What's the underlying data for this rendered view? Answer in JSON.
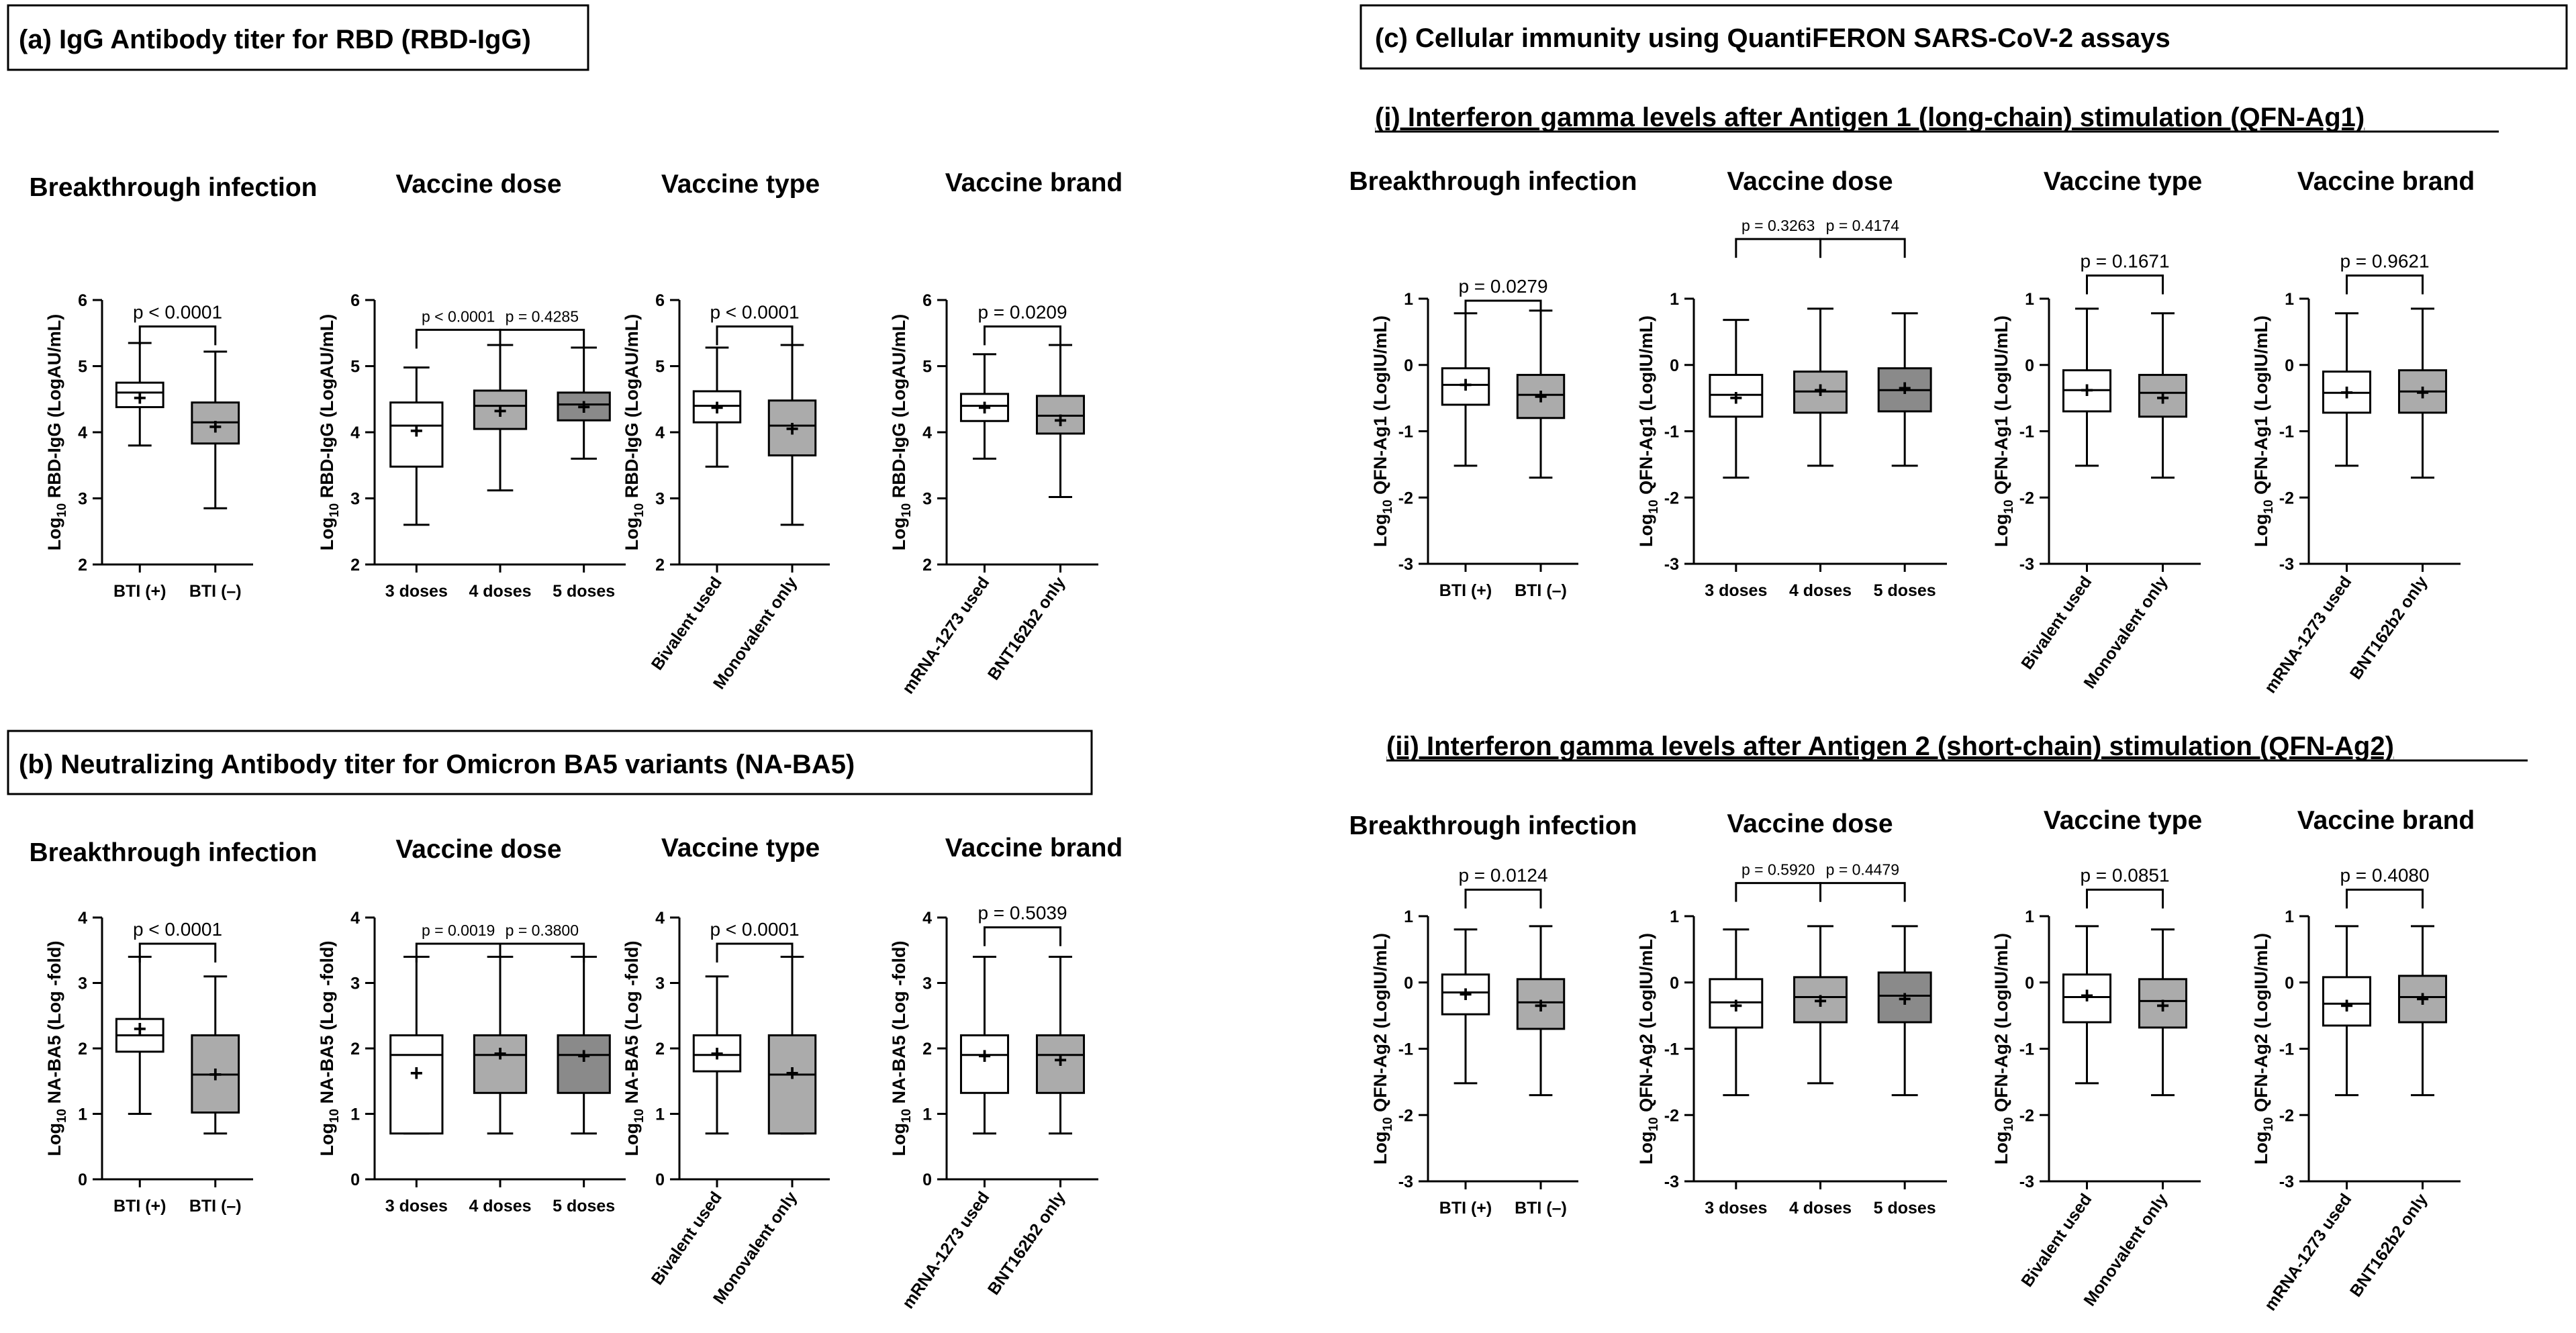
{
  "panels": {
    "a": "(a) IgG Antibody titer for RBD (RBD-IgG)",
    "b": "(b) Neutralizing Antibody titer for Omicron BA5 variants (NA-BA5)",
    "c": "(c) Cellular immunity using QuantiFERON SARS-CoV-2 assays",
    "c_i": "(i) Interferon gamma levels after Antigen 1 (long-chain) stimulation (QFN-Ag1)",
    "c_ii": "(ii) Interferon gamma levels after Antigen 2 (short-chain) stimulation (QFN-Ag2)"
  },
  "colors": {
    "white": "#ffffff",
    "light_gray": "#ababab",
    "dark_gray": "#8a8a8a",
    "black": "#000000"
  },
  "chart_data": [
    {
      "id": "a-bti",
      "type": "boxplot",
      "title": "Breakthrough infection",
      "ylabel_main": "Log",
      "ylabel_sub": "10",
      "ylabel_rest": " RBD-IgG  (LogAU/mL)",
      "ylim": [
        2,
        6
      ],
      "yticks": [
        2,
        3,
        4,
        5,
        6
      ],
      "categories": [
        "BTI (+)",
        "BTI (–)"
      ],
      "rotated": false,
      "boxes": [
        {
          "min": 3.8,
          "q1": 4.38,
          "median": 4.6,
          "q3": 4.75,
          "max": 5.35,
          "mean": 4.52,
          "fill": "white"
        },
        {
          "min": 2.85,
          "q1": 3.83,
          "median": 4.15,
          "q3": 4.45,
          "max": 5.22,
          "mean": 4.08,
          "fill": "light_gray"
        }
      ],
      "comparisons": [
        {
          "label": "p < 0.0001",
          "from": 0,
          "to": 1,
          "y": 5.6
        }
      ]
    },
    {
      "id": "a-dose",
      "type": "boxplot",
      "title": "Vaccine dose",
      "ylabel_main": "Log",
      "ylabel_sub": "10",
      "ylabel_rest": " RBD-IgG  (LogAU/mL)",
      "ylim": [
        2,
        6
      ],
      "yticks": [
        2,
        3,
        4,
        5,
        6
      ],
      "categories": [
        "3 doses",
        "4 doses",
        "5 doses"
      ],
      "rotated": false,
      "boxes": [
        {
          "min": 2.6,
          "q1": 3.48,
          "median": 4.1,
          "q3": 4.45,
          "max": 4.98,
          "mean": 4.02,
          "fill": "white"
        },
        {
          "min": 3.12,
          "q1": 4.05,
          "median": 4.4,
          "q3": 4.63,
          "max": 5.32,
          "mean": 4.32,
          "fill": "light_gray"
        },
        {
          "min": 3.6,
          "q1": 4.18,
          "median": 4.42,
          "q3": 4.6,
          "max": 5.28,
          "mean": 4.38,
          "fill": "dark_gray"
        }
      ],
      "comparisons": [
        {
          "label": "p < 0.0001",
          "from": 0,
          "to": 1,
          "y": 5.55,
          "small": true
        },
        {
          "label": "p = 0.4285",
          "from": 1,
          "to": 2,
          "y": 5.55,
          "small": true
        }
      ]
    },
    {
      "id": "a-type",
      "type": "boxplot",
      "title": "Vaccine type",
      "ylabel_main": "Log",
      "ylabel_sub": "10",
      "ylabel_rest": " RBD-IgG  (LogAU/mL)",
      "ylim": [
        2,
        6
      ],
      "yticks": [
        2,
        3,
        4,
        5,
        6
      ],
      "categories": [
        "Bivalent used",
        "Monovalent only"
      ],
      "rotated": true,
      "boxes": [
        {
          "min": 3.48,
          "q1": 4.15,
          "median": 4.4,
          "q3": 4.62,
          "max": 5.28,
          "mean": 4.37,
          "fill": "white"
        },
        {
          "min": 2.6,
          "q1": 3.65,
          "median": 4.1,
          "q3": 4.48,
          "max": 5.32,
          "mean": 4.05,
          "fill": "light_gray"
        }
      ],
      "comparisons": [
        {
          "label": "p < 0.0001",
          "from": 0,
          "to": 1,
          "y": 5.6
        }
      ]
    },
    {
      "id": "a-brand",
      "type": "boxplot",
      "title": "Vaccine brand",
      "ylabel_main": "Log",
      "ylabel_sub": "10",
      "ylabel_rest": " RBD-IgG  (LogAU/mL)",
      "ylim": [
        2,
        6
      ],
      "yticks": [
        2,
        3,
        4,
        5,
        6
      ],
      "categories": [
        "mRNA-1273 used",
        "BNT162b2 only"
      ],
      "rotated": true,
      "boxes": [
        {
          "min": 3.6,
          "q1": 4.17,
          "median": 4.4,
          "q3": 4.58,
          "max": 5.18,
          "mean": 4.37,
          "fill": "white"
        },
        {
          "min": 3.02,
          "q1": 3.98,
          "median": 4.25,
          "q3": 4.55,
          "max": 5.32,
          "mean": 4.18,
          "fill": "light_gray"
        }
      ],
      "comparisons": [
        {
          "label": "p = 0.0209",
          "from": 0,
          "to": 1,
          "y": 5.6
        }
      ]
    },
    {
      "id": "b-bti",
      "type": "boxplot",
      "title": "Breakthrough infection",
      "ylabel_main": "Log",
      "ylabel_sub": "10",
      "ylabel_rest": " NA-BA5  (Log -fold)",
      "ylim": [
        0,
        4
      ],
      "yticks": [
        0,
        1,
        2,
        3,
        4
      ],
      "categories": [
        "BTI (+)",
        "BTI  (–)"
      ],
      "rotated": false,
      "boxes": [
        {
          "min": 1.0,
          "q1": 1.95,
          "median": 2.2,
          "q3": 2.45,
          "max": 3.4,
          "mean": 2.3,
          "fill": "white"
        },
        {
          "min": 0.7,
          "q1": 1.02,
          "median": 1.6,
          "q3": 2.2,
          "max": 3.1,
          "mean": 1.6,
          "fill": "light_gray"
        }
      ],
      "comparisons": [
        {
          "label": "p < 0.0001",
          "from": 0,
          "to": 1,
          "y": 3.6
        }
      ]
    },
    {
      "id": "b-dose",
      "type": "boxplot",
      "title": "Vaccine dose",
      "ylabel_main": "Log",
      "ylabel_sub": "10",
      "ylabel_rest": " NA-BA5  (Log -fold)",
      "ylim": [
        0,
        4
      ],
      "yticks": [
        0,
        1,
        2,
        3,
        4
      ],
      "categories": [
        "3 doses",
        "4 doses",
        "5 doses"
      ],
      "rotated": false,
      "boxes": [
        {
          "min": 0.7,
          "q1": 0.7,
          "median": 1.9,
          "q3": 2.2,
          "max": 3.4,
          "mean": 1.62,
          "fill": "white"
        },
        {
          "min": 0.7,
          "q1": 1.32,
          "median": 1.9,
          "q3": 2.2,
          "max": 3.4,
          "mean": 1.92,
          "fill": "light_gray"
        },
        {
          "min": 0.7,
          "q1": 1.32,
          "median": 1.9,
          "q3": 2.2,
          "max": 3.4,
          "mean": 1.88,
          "fill": "dark_gray"
        }
      ],
      "comparisons": [
        {
          "label": "p = 0.0019",
          "from": 0,
          "to": 1,
          "y": 3.6,
          "small": true
        },
        {
          "label": "p = 0.3800",
          "from": 1,
          "to": 2,
          "y": 3.6,
          "small": true
        }
      ]
    },
    {
      "id": "b-type",
      "type": "boxplot",
      "title": "Vaccine type",
      "ylabel_main": "Log",
      "ylabel_sub": "10",
      "ylabel_rest": " NA-BA5  (Log -fold)",
      "ylim": [
        0,
        4
      ],
      "yticks": [
        0,
        1,
        2,
        3,
        4
      ],
      "categories": [
        "Bivalent used",
        "Monovalent only"
      ],
      "rotated": true,
      "boxes": [
        {
          "min": 0.7,
          "q1": 1.65,
          "median": 1.9,
          "q3": 2.2,
          "max": 3.1,
          "mean": 1.92,
          "fill": "white"
        },
        {
          "min": 0.7,
          "q1": 0.7,
          "median": 1.6,
          "q3": 2.2,
          "max": 3.4,
          "mean": 1.62,
          "fill": "light_gray"
        }
      ],
      "comparisons": [
        {
          "label": "p < 0.0001",
          "from": 0,
          "to": 1,
          "y": 3.6
        }
      ]
    },
    {
      "id": "b-brand",
      "type": "boxplot",
      "title": "Vaccine brand",
      "ylabel_main": "Log",
      "ylabel_sub": "10",
      "ylabel_rest": " NA-BA5  (Log -fold)",
      "ylim": [
        0,
        4
      ],
      "yticks": [
        0,
        1,
        2,
        3,
        4
      ],
      "categories": [
        "mRNA-1273 used",
        "BNT162b2 only"
      ],
      "rotated": true,
      "boxes": [
        {
          "min": 0.7,
          "q1": 1.32,
          "median": 1.9,
          "q3": 2.2,
          "max": 3.4,
          "mean": 1.88,
          "fill": "white"
        },
        {
          "min": 0.7,
          "q1": 1.32,
          "median": 1.9,
          "q3": 2.2,
          "max": 3.4,
          "mean": 1.82,
          "fill": "light_gray"
        }
      ],
      "comparisons": [
        {
          "label": "p = 0.5039",
          "from": 0,
          "to": 1,
          "y": 3.85
        }
      ]
    },
    {
      "id": "ci-bti",
      "type": "boxplot",
      "title": "Breakthrough infection",
      "ylabel_main": "Log",
      "ylabel_sub": "10",
      "ylabel_rest": " QFN-Ag1  (LogIU/mL)",
      "ylim": [
        -3,
        1
      ],
      "yticks": [
        -3,
        -2,
        -1,
        0,
        1
      ],
      "categories": [
        "BTI (+)",
        "BTI (–)"
      ],
      "rotated": false,
      "boxes": [
        {
          "min": -1.52,
          "q1": -0.6,
          "median": -0.3,
          "q3": -0.05,
          "max": 0.78,
          "mean": -0.3,
          "fill": "white"
        },
        {
          "min": -1.7,
          "q1": -0.8,
          "median": -0.45,
          "q3": -0.15,
          "max": 0.82,
          "mean": -0.48,
          "fill": "light_gray"
        }
      ],
      "comparisons": [
        {
          "label": "p = 0.0279",
          "from": 0,
          "to": 1,
          "y": 0.97
        }
      ]
    },
    {
      "id": "ci-dose",
      "type": "boxplot",
      "title": "Vaccine dose",
      "ylabel_main": "Log",
      "ylabel_sub": "10",
      "ylabel_rest": " QFN-Ag1  (LogIU/mL)",
      "ylim": [
        -3,
        1
      ],
      "yticks": [
        -3,
        -2,
        -1,
        0,
        1
      ],
      "categories": [
        "3 doses",
        "4 doses",
        "5 doses"
      ],
      "rotated": false,
      "boxes": [
        {
          "min": -1.7,
          "q1": -0.78,
          "median": -0.45,
          "q3": -0.15,
          "max": 0.68,
          "mean": -0.5,
          "fill": "white"
        },
        {
          "min": -1.52,
          "q1": -0.72,
          "median": -0.4,
          "q3": -0.1,
          "max": 0.85,
          "mean": -0.38,
          "fill": "light_gray"
        },
        {
          "min": -1.52,
          "q1": -0.7,
          "median": -0.38,
          "q3": -0.05,
          "max": 0.78,
          "mean": -0.35,
          "fill": "dark_gray"
        }
      ],
      "comparisons": [
        {
          "label": "p = 0.3263",
          "from": 0,
          "to": 1,
          "y": 1.9,
          "small": true
        },
        {
          "label": "p = 0.4174",
          "from": 1,
          "to": 2,
          "y": 1.9,
          "small": true
        }
      ]
    },
    {
      "id": "ci-type",
      "type": "boxplot",
      "title": "Vaccine type",
      "ylabel_main": "Log",
      "ylabel_sub": "10",
      "ylabel_rest": " QFN-Ag1  (LogIU/mL)",
      "ylim": [
        -3,
        1
      ],
      "yticks": [
        -3,
        -2,
        -1,
        0,
        1
      ],
      "categories": [
        "Bivalent used",
        "Monovalent only"
      ],
      "rotated": true,
      "boxes": [
        {
          "min": -1.52,
          "q1": -0.7,
          "median": -0.38,
          "q3": -0.08,
          "max": 0.85,
          "mean": -0.38,
          "fill": "white"
        },
        {
          "min": -1.7,
          "q1": -0.78,
          "median": -0.42,
          "q3": -0.15,
          "max": 0.78,
          "mean": -0.5,
          "fill": "light_gray"
        }
      ],
      "comparisons": [
        {
          "label": "p = 0.1671",
          "from": 0,
          "to": 1,
          "y": 1.35
        }
      ]
    },
    {
      "id": "ci-brand",
      "type": "boxplot",
      "title": "Vaccine brand",
      "ylabel_main": "Log",
      "ylabel_sub": "10",
      "ylabel_rest": " QFN-Ag1  (LogIU/mL)",
      "ylim": [
        -3,
        1
      ],
      "yticks": [
        -3,
        -2,
        -1,
        0,
        1
      ],
      "categories": [
        "mRNA-1273 used",
        "BNT162b2 only"
      ],
      "rotated": true,
      "boxes": [
        {
          "min": -1.52,
          "q1": -0.72,
          "median": -0.42,
          "q3": -0.1,
          "max": 0.78,
          "mean": -0.42,
          "fill": "white"
        },
        {
          "min": -1.7,
          "q1": -0.72,
          "median": -0.4,
          "q3": -0.08,
          "max": 0.85,
          "mean": -0.42,
          "fill": "light_gray"
        }
      ],
      "comparisons": [
        {
          "label": "p = 0.9621",
          "from": 0,
          "to": 1,
          "y": 1.35
        }
      ]
    },
    {
      "id": "cii-bti",
      "type": "boxplot",
      "title": "Breakthrough infection",
      "ylabel_main": "Log",
      "ylabel_sub": "10",
      "ylabel_rest": " QFN-Ag2  (LogIU/mL)",
      "ylim": [
        -3,
        1
      ],
      "yticks": [
        -3,
        -2,
        -1,
        0,
        1
      ],
      "categories": [
        "BTI (+)",
        "BTI (–)"
      ],
      "rotated": false,
      "boxes": [
        {
          "min": -1.52,
          "q1": -0.48,
          "median": -0.15,
          "q3": 0.12,
          "max": 0.8,
          "mean": -0.18,
          "fill": "white"
        },
        {
          "min": -1.7,
          "q1": -0.7,
          "median": -0.3,
          "q3": 0.05,
          "max": 0.85,
          "mean": -0.35,
          "fill": "light_gray"
        }
      ],
      "comparisons": [
        {
          "label": "p = 0.0124",
          "from": 0,
          "to": 1,
          "y": 1.4
        }
      ]
    },
    {
      "id": "cii-dose",
      "type": "boxplot",
      "title": "Vaccine dose",
      "ylabel_main": "Log",
      "ylabel_sub": "10",
      "ylabel_rest": " QFN-Ag2  (LogIU/mL)",
      "ylim": [
        -3,
        1
      ],
      "yticks": [
        -3,
        -2,
        -1,
        0,
        1
      ],
      "categories": [
        "3 doses",
        "4 doses",
        "5 doses"
      ],
      "rotated": false,
      "boxes": [
        {
          "min": -1.7,
          "q1": -0.68,
          "median": -0.3,
          "q3": 0.05,
          "max": 0.8,
          "mean": -0.35,
          "fill": "white"
        },
        {
          "min": -1.52,
          "q1": -0.6,
          "median": -0.22,
          "q3": 0.08,
          "max": 0.85,
          "mean": -0.28,
          "fill": "light_gray"
        },
        {
          "min": -1.7,
          "q1": -0.6,
          "median": -0.2,
          "q3": 0.15,
          "max": 0.85,
          "mean": -0.25,
          "fill": "dark_gray"
        }
      ],
      "comparisons": [
        {
          "label": "p = 0.5920",
          "from": 0,
          "to": 1,
          "y": 1.5,
          "small": true
        },
        {
          "label": "p = 0.4479",
          "from": 1,
          "to": 2,
          "y": 1.5,
          "small": true
        }
      ]
    },
    {
      "id": "cii-type",
      "type": "boxplot",
      "title": "Vaccine type",
      "ylabel_main": "Log",
      "ylabel_sub": "10",
      "ylabel_rest": " QFN-Ag2  (LogIU/mL)",
      "ylim": [
        -3,
        1
      ],
      "yticks": [
        -3,
        -2,
        -1,
        0,
        1
      ],
      "categories": [
        "Bivalent used",
        "Monovalent only"
      ],
      "rotated": true,
      "boxes": [
        {
          "min": -1.52,
          "q1": -0.6,
          "median": -0.22,
          "q3": 0.12,
          "max": 0.85,
          "mean": -0.2,
          "fill": "white"
        },
        {
          "min": -1.7,
          "q1": -0.68,
          "median": -0.28,
          "q3": 0.05,
          "max": 0.8,
          "mean": -0.35,
          "fill": "light_gray"
        }
      ],
      "comparisons": [
        {
          "label": "p = 0.0851",
          "from": 0,
          "to": 1,
          "y": 1.4
        }
      ]
    },
    {
      "id": "cii-brand",
      "type": "boxplot",
      "title": "Vaccine brand",
      "ylabel_main": "Log",
      "ylabel_sub": "10",
      "ylabel_rest": " QFN-Ag2  (LogIU/mL)",
      "ylim": [
        -3,
        1
      ],
      "yticks": [
        -3,
        -2,
        -1,
        0,
        1
      ],
      "categories": [
        "mRNA-1273 used",
        "BNT162b2 only"
      ],
      "rotated": true,
      "boxes": [
        {
          "min": -1.7,
          "q1": -0.65,
          "median": -0.32,
          "q3": 0.08,
          "max": 0.85,
          "mean": -0.35,
          "fill": "white"
        },
        {
          "min": -1.7,
          "q1": -0.6,
          "median": -0.22,
          "q3": 0.1,
          "max": 0.85,
          "mean": -0.25,
          "fill": "light_gray"
        }
      ],
      "comparisons": [
        {
          "label": "p = 0.4080",
          "from": 0,
          "to": 1,
          "y": 1.4
        }
      ]
    }
  ]
}
